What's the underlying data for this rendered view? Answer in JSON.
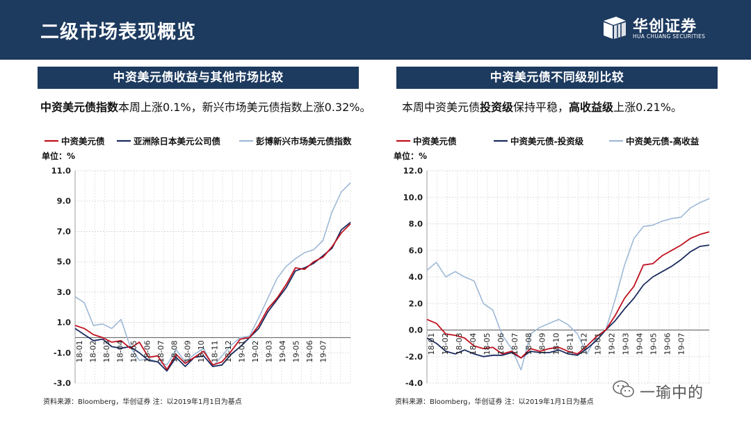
{
  "header": {
    "title": "二级市场表现概览",
    "logo_cn": "华创证券",
    "logo_en": "HUA CHUANG SECURITIES"
  },
  "left": {
    "panel_title": "中资美元债收益与其他市场比较",
    "desc_bold": "中资美元债指数",
    "desc_rest": "本周上涨0.1%，新兴市场美元债指数上涨0.32%。",
    "source": "资料来源：Bloomberg，华创证券   注：以2019年1月1日为基点"
  },
  "right": {
    "panel_title": "中资美元债不同级别比较",
    "desc_a": "本周中资美元债",
    "desc_b": "投资级",
    "desc_c": "保持平稳，",
    "desc_d": "高收益级",
    "desc_e": "上涨0.21%。",
    "source": "资料来源：Bloomberg，华创证券   注：以2019年1月1日为基点"
  },
  "watermark": {
    "text": "一瑜中的"
  },
  "colors": {
    "navy": "#1d3a5f",
    "red": "#c0111f",
    "dark_blue": "#1a2a5e",
    "light_blue": "#9db8d6"
  },
  "chart_data": [
    {
      "type": "line",
      "unit_label": "单位：%",
      "ylim": [
        -3.0,
        11.0
      ],
      "yticks": [
        "11.0",
        "9.0",
        "7.0",
        "5.0",
        "3.0",
        "1.0",
        "-1.0",
        "-3.0"
      ],
      "ytick_values": [
        11,
        9,
        7,
        5,
        3,
        1,
        -1,
        -3
      ],
      "xticks": [
        "18-01",
        "18-02",
        "18-03",
        "18-04",
        "18-05",
        "18-06",
        "18-07",
        "18-08",
        "18-09",
        "18-10",
        "18-11",
        "18-12",
        "19-01",
        "19-02",
        "19-03",
        "19-04",
        "19-05",
        "19-06",
        "19-07"
      ],
      "grid": true,
      "legend": "top",
      "series": [
        {
          "name": "中资美元债",
          "color": "#c0111f",
          "values": [
            0.8,
            0.6,
            0.2,
            0.0,
            -0.3,
            -0.2,
            -0.7,
            -0.3,
            -1.3,
            -1.2,
            -2.1,
            -1.1,
            -1.7,
            -1.3,
            -0.9,
            -1.8,
            -1.6,
            -0.9,
            -0.1,
            0.0,
            0.8,
            1.9,
            2.6,
            3.5,
            4.6,
            4.5,
            5.0,
            5.3,
            6.0,
            6.9,
            7.5
          ]
        },
        {
          "name": "亚洲除日本美元公司债",
          "color": "#1a2a5e",
          "values": [
            0.6,
            0.2,
            -0.2,
            -0.1,
            -0.6,
            -0.7,
            -0.6,
            -1.0,
            -1.5,
            -1.6,
            -2.2,
            -1.3,
            -1.9,
            -1.3,
            -1.2,
            -1.9,
            -1.8,
            -1.1,
            -0.6,
            0.0,
            0.6,
            1.7,
            2.5,
            3.3,
            4.4,
            4.6,
            4.9,
            5.4,
            5.9,
            7.1,
            7.6
          ]
        },
        {
          "name": "彭博新兴市场美元债指数",
          "color": "#9db8d6",
          "values": [
            2.7,
            2.3,
            0.8,
            0.9,
            0.6,
            1.2,
            -0.6,
            -1.5,
            -1.4,
            -1.6,
            -1.8,
            -0.8,
            -1.6,
            -1.1,
            -0.7,
            -1.9,
            -1.2,
            -0.5,
            0.0,
            0.1,
            1.3,
            2.6,
            3.9,
            4.7,
            5.2,
            5.6,
            5.8,
            6.4,
            8.3,
            9.6,
            10.2
          ]
        }
      ]
    },
    {
      "type": "line",
      "unit_label": "单位：%",
      "ylim": [
        -4.0,
        12.0
      ],
      "yticks": [
        "12.0",
        "10.0",
        "8.0",
        "6.0",
        "4.0",
        "2.0",
        "0.0",
        "-2.0",
        "-4.0"
      ],
      "ytick_values": [
        12,
        10,
        8,
        6,
        4,
        2,
        0,
        -2,
        -4
      ],
      "xticks": [
        "18-01",
        "18-02",
        "18-03",
        "18-04",
        "18-05",
        "18-06",
        "18-07",
        "18-08",
        "18-09",
        "18-10",
        "18-11",
        "18-12",
        "19-01",
        "19-02",
        "19-03",
        "19-04",
        "19-05",
        "19-06",
        "19-07"
      ],
      "grid": true,
      "legend": "top",
      "series": [
        {
          "name": "中资美元债",
          "color": "#c0111f",
          "values": [
            0.8,
            0.5,
            -0.3,
            -0.4,
            -0.6,
            -1.2,
            -1.4,
            -1.3,
            -1.8,
            -1.6,
            -2.1,
            -1.4,
            -1.6,
            -1.4,
            -1.3,
            -1.6,
            -1.8,
            -1.2,
            -0.5,
            0.0,
            1.1,
            2.4,
            3.3,
            4.9,
            5.0,
            5.6,
            6.0,
            6.4,
            6.9,
            7.2,
            7.4
          ]
        },
        {
          "name": "中资美元债-投资级",
          "color": "#1a2a5e",
          "values": [
            -0.6,
            -1.0,
            -1.6,
            -1.8,
            -1.5,
            -1.8,
            -2.0,
            -1.9,
            -1.9,
            -1.7,
            -2.1,
            -1.6,
            -1.7,
            -1.7,
            -1.5,
            -1.8,
            -1.9,
            -1.4,
            -0.8,
            0.0,
            0.7,
            1.6,
            2.4,
            3.4,
            4.0,
            4.4,
            4.8,
            5.3,
            5.9,
            6.3,
            6.4
          ]
        },
        {
          "name": "中资美元债-高收益",
          "color": "#9db8d6",
          "values": [
            4.5,
            5.1,
            4.0,
            4.4,
            4.0,
            3.7,
            2.0,
            1.5,
            -0.4,
            -1.4,
            -3.0,
            -0.3,
            0.2,
            0.5,
            0.8,
            0.4,
            -0.3,
            -1.8,
            -0.5,
            0.0,
            2.3,
            4.9,
            6.9,
            7.8,
            7.9,
            8.2,
            8.4,
            8.5,
            9.2,
            9.6,
            9.9
          ]
        }
      ]
    }
  ]
}
